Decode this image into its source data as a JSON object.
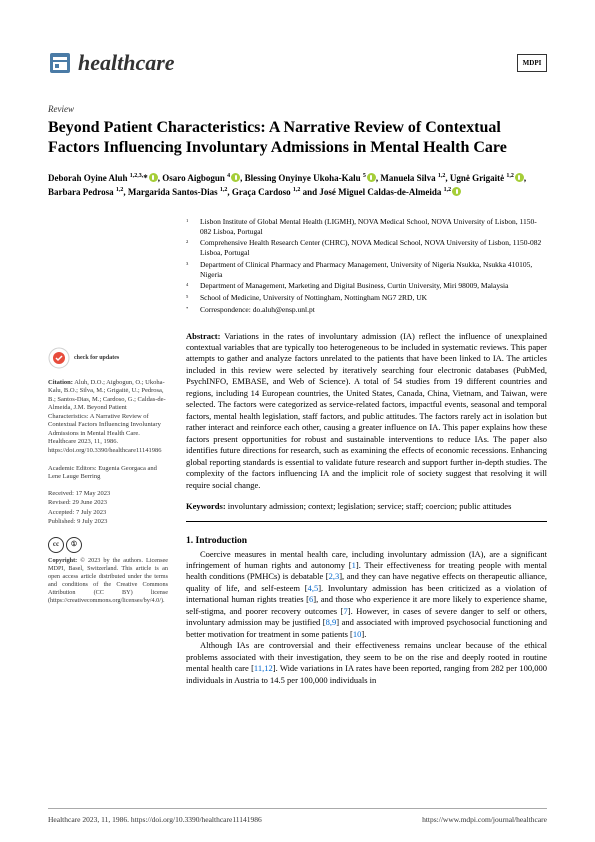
{
  "journal": {
    "name": "healthcare",
    "badge": "MDPI"
  },
  "article_type": "Review",
  "title": "Beyond Patient Characteristics: A Narrative Review of Contextual Factors Influencing Involuntary Admissions in Mental Health Care",
  "authors_html": "Deborah Oyine Aluh <span class='sup'>1,2,3,</span>*<span class='orcid'></span>, Osaro Aigbogun <span class='sup'>4</span><span class='orcid'></span>, Blessing Onyinye Ukoha-Kalu <span class='sup'>5</span><span class='orcid'></span>, Manuela Silva <span class='sup'>1,2</span>, Ugnė Grigaitė <span class='sup'>1,2</span><span class='orcid'></span>, Barbara Pedrosa <span class='sup'>1,2</span>, Margarida Santos-Dias <span class='sup'>1,2</span>, Graça Cardoso <span class='sup'>1,2</span> and José Miguel Caldas-de-Almeida <span class='sup'>1,2</span><span class='orcid'></span>",
  "affiliations": [
    {
      "n": "1",
      "text": "Lisbon Institute of Global Mental Health (LIGMH), NOVA Medical School, NOVA University of Lisbon, 1150-082 Lisboa, Portugal"
    },
    {
      "n": "2",
      "text": "Comprehensive Health Research Center (CHRC), NOVA Medical School, NOVA University of Lisbon, 1150-082 Lisboa, Portugal"
    },
    {
      "n": "3",
      "text": "Department of Clinical Pharmacy and Pharmacy Management, University of Nigeria Nsukka, Nsukka 410105, Nigeria"
    },
    {
      "n": "4",
      "text": "Department of Management, Marketing and Digital Business, Curtin University, Miri 98009, Malaysia"
    },
    {
      "n": "5",
      "text": "School of Medicine, University of Nottingham, Nottingham NG7 2RD, UK"
    },
    {
      "n": "*",
      "text": "Correspondence: do.aluh@ensp.unl.pt"
    }
  ],
  "abstract_label": "Abstract:",
  "abstract_text": "Variations in the rates of involuntary admission (IA) reflect the influence of unexplained contextual variables that are typically too heterogeneous to be included in systematic reviews. This paper attempts to gather and analyze factors unrelated to the patients that have been linked to IA. The articles included in this review were selected by iteratively searching four electronic databases (PubMed, PsychINFO, EMBASE, and Web of Science). A total of 54 studies from 19 different countries and regions, including 14 European countries, the United States, Canada, China, Vietnam, and Taiwan, were selected. The factors were categorized as service-related factors, impactful events, seasonal and temporal factors, mental health legislation, staff factors, and public attitudes. The factors rarely act in isolation but rather interact and reinforce each other, causing a greater influence on IA. This paper explains how these factors present opportunities for robust and sustainable interventions to reduce IAs. The paper also identifies future directions for research, such as examining the effects of economic recessions. Enhancing global reporting standards is essential to validate future research and support further in-depth studies. The complexity of the factors influencing IA and the implicit role of society suggest that resolving it will require social change.",
  "keywords_label": "Keywords:",
  "keywords_text": "involuntary admission; context; legislation; service; staff; coercion; public attitudes",
  "section1_head": "1. Introduction",
  "intro_p1": "Coercive measures in mental health care, including involuntary admission (IA), are a significant infringement of human rights and autonomy [1]. Their effectiveness for treating people with mental health conditions (PMHCs) is debatable [2,3], and they can have negative effects on therapeutic alliance, quality of life, and self-esteem [4,5]. Involuntary admission has been criticized as a violation of international human rights treaties [6], and those who experience it are more likely to experience shame, self-stigma, and poorer recovery outcomes [7]. However, in cases of severe danger to self or others, involuntary admission may be justified [8,9] and associated with improved psychosocial functioning and better motivation for treatment in some patients [10].",
  "intro_p2": "Although IAs are controversial and their effectiveness remains unclear because of the ethical problems associated with their investigation, they seem to be on the rise and deeply rooted in routine mental health care [11,12]. Wide variations in IA rates have been reported, ranging from 282 per 100,000 individuals in Austria to 14.5 per 100,000 individuals in",
  "sidebar": {
    "check_updates": "check for updates",
    "citation_label": "Citation:",
    "citation_text": "Aluh, D.O.; Aigbogun, O.; Ukoha-Kalu, B.O.; Silva, M.; Grigaitė, U.; Pedrosa, B.; Santos-Dias, M.; Cardoso, G.; Caldas-de-Almeida, J.M. Beyond Patient Characteristics: A Narrative Review of Contextual Factors Influencing Involuntary Admissions in Mental Health Care. Healthcare 2023, 11, 1986. https://doi.org/10.3390/healthcare11141986",
    "editors_label": "Academic Editors:",
    "editors_text": "Eugenia Georgaca and Lene Lauge Berring",
    "received": "Received: 17 May 2023",
    "revised": "Revised: 29 June 2023",
    "accepted": "Accepted: 7 July 2023",
    "published": "Published: 9 July 2023",
    "copyright_label": "Copyright:",
    "copyright_text": "© 2023 by the authors. Licensee MDPI, Basel, Switzerland. This article is an open access article distributed under the terms and conditions of the Creative Commons Attribution (CC BY) license (https://creativecommons.org/licenses/by/4.0/)."
  },
  "footer": {
    "left": "Healthcare 2023, 11, 1986. https://doi.org/10.3390/healthcare11141986",
    "right": "https://www.mdpi.com/journal/healthcare"
  },
  "colors": {
    "orcid": "#a6ce39",
    "link": "#0066cc",
    "text": "#000000"
  }
}
